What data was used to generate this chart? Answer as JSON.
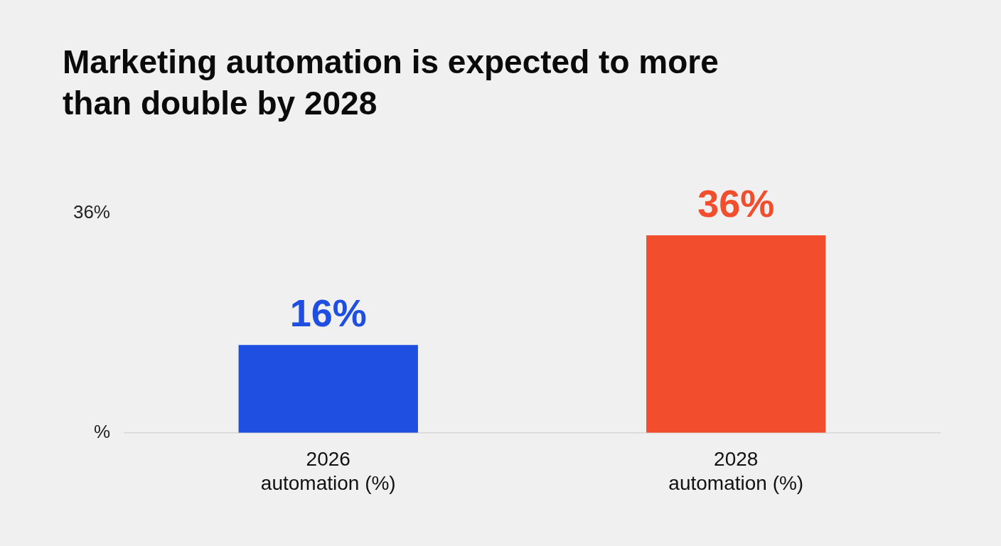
{
  "chart_data": {
    "type": "bar",
    "title": "Marketing automation is expected to more than double by 2028",
    "categories": [
      "2026\nautomation (%)",
      "2028\nautomation (%)"
    ],
    "values": [
      16,
      36
    ],
    "value_labels": [
      "16%",
      "36%"
    ],
    "colors": [
      "#1f4fe0",
      "#f24e2e"
    ],
    "annotations": [
      "36%",
      "%"
    ],
    "legend": false
  }
}
